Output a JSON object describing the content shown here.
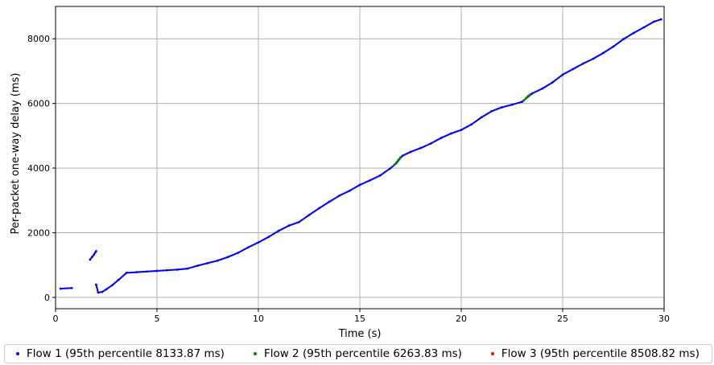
{
  "chart_data": {
    "type": "scatter",
    "title": "",
    "xlabel": "Time (s)",
    "ylabel": "Per-packet one-way delay (ms)",
    "xlim": [
      0,
      30
    ],
    "ylim": [
      -350,
      9000
    ],
    "xticks": [
      "0",
      "5",
      "10",
      "15",
      "20",
      "25",
      "30"
    ],
    "xtick_values": [
      0,
      5,
      10,
      15,
      20,
      25,
      30
    ],
    "yticks": [
      "0",
      "2000",
      "4000",
      "6000",
      "8000"
    ],
    "ytick_values": [
      0,
      2000,
      4000,
      6000,
      8000
    ],
    "grid": true,
    "legend_position": "bottom",
    "series": [
      {
        "name": "Flow 1 (95th percentile 8133.87 ms)",
        "color": "#0000ff",
        "points": [
          [
            0.25,
            270
          ],
          [
            0.8,
            290
          ],
          [
            1.7,
            1170
          ],
          [
            1.8,
            1250
          ],
          [
            1.9,
            1330
          ],
          [
            1.95,
            1380
          ],
          [
            2.0,
            1430
          ],
          [
            2.0,
            400
          ],
          [
            2.1,
            150
          ],
          [
            2.3,
            170
          ],
          [
            2.5,
            250
          ],
          [
            2.8,
            380
          ],
          [
            3.1,
            540
          ],
          [
            3.5,
            760
          ],
          [
            4.0,
            780
          ],
          [
            4.5,
            800
          ],
          [
            5.0,
            820
          ],
          [
            5.5,
            840
          ],
          [
            6.0,
            860
          ],
          [
            6.5,
            890
          ],
          [
            7.0,
            980
          ],
          [
            7.5,
            1060
          ],
          [
            8.0,
            1140
          ],
          [
            8.5,
            1250
          ],
          [
            9.0,
            1380
          ],
          [
            9.5,
            1550
          ],
          [
            10.0,
            1700
          ],
          [
            10.5,
            1870
          ],
          [
            11.0,
            2060
          ],
          [
            11.5,
            2220
          ],
          [
            12.0,
            2330
          ],
          [
            12.5,
            2550
          ],
          [
            13.0,
            2760
          ],
          [
            13.5,
            2960
          ],
          [
            14.0,
            3150
          ],
          [
            14.5,
            3300
          ],
          [
            15.0,
            3480
          ],
          [
            15.5,
            3620
          ],
          [
            16.0,
            3770
          ],
          [
            16.5,
            3990
          ],
          [
            16.8,
            4150
          ],
          [
            17.1,
            4380
          ],
          [
            17.5,
            4500
          ],
          [
            18.0,
            4620
          ],
          [
            18.5,
            4760
          ],
          [
            19.0,
            4930
          ],
          [
            19.5,
            5070
          ],
          [
            20.0,
            5180
          ],
          [
            20.5,
            5350
          ],
          [
            21.0,
            5570
          ],
          [
            21.5,
            5760
          ],
          [
            22.0,
            5880
          ],
          [
            22.5,
            5960
          ],
          [
            23.0,
            6050
          ],
          [
            23.5,
            6310
          ],
          [
            24.0,
            6460
          ],
          [
            24.5,
            6650
          ],
          [
            25.0,
            6890
          ],
          [
            25.5,
            7060
          ],
          [
            26.0,
            7230
          ],
          [
            26.5,
            7380
          ],
          [
            27.0,
            7560
          ],
          [
            27.5,
            7760
          ],
          [
            28.0,
            7990
          ],
          [
            28.5,
            8180
          ],
          [
            29.0,
            8350
          ],
          [
            29.5,
            8530
          ],
          [
            29.85,
            8600
          ]
        ]
      },
      {
        "name": "Flow 2 (95th percentile 6263.83 ms)",
        "color": "#008000",
        "points": [
          [
            16.7,
            4100
          ],
          [
            16.8,
            4170
          ],
          [
            16.9,
            4250
          ],
          [
            17.0,
            4330
          ],
          [
            23.1,
            6100
          ],
          [
            23.2,
            6170
          ],
          [
            23.3,
            6230
          ],
          [
            23.4,
            6280
          ]
        ]
      },
      {
        "name": "Flow 3 (95th percentile 8508.82 ms)",
        "color": "#ff0000",
        "points": []
      }
    ]
  }
}
